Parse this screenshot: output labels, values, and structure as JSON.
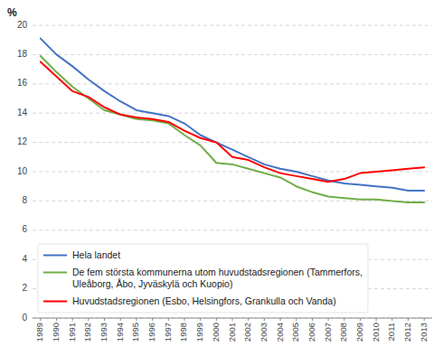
{
  "chart_data": {
    "type": "line",
    "y_label": "%",
    "x": [
      1989,
      1990,
      1991,
      1992,
      1993,
      1994,
      1995,
      1996,
      1997,
      1998,
      1999,
      2000,
      2001,
      2002,
      2003,
      2004,
      2005,
      2006,
      2007,
      2008,
      2009,
      2010,
      2011,
      2012,
      2013
    ],
    "series": [
      {
        "name": "Hela landet",
        "color": "#4472C4",
        "values": [
          19.1,
          18.0,
          17.2,
          16.3,
          15.5,
          14.8,
          14.2,
          14.0,
          13.8,
          13.3,
          12.5,
          12.0,
          11.5,
          11.0,
          10.5,
          10.2,
          10.0,
          9.7,
          9.4,
          9.2,
          9.1,
          9.0,
          8.9,
          8.7,
          8.7
        ]
      },
      {
        "name": "De fem största kommunerna utom huvudstadsregionen (Tammerfors,\nUleåborg, Åbo, Jyväskylä och Kuopio)",
        "color": "#70AD47",
        "values": [
          17.9,
          16.8,
          15.8,
          15.0,
          14.2,
          13.9,
          13.6,
          13.5,
          13.3,
          12.5,
          11.8,
          10.6,
          10.5,
          10.2,
          9.9,
          9.6,
          9.0,
          8.6,
          8.3,
          8.2,
          8.1,
          8.1,
          8.0,
          7.9,
          7.9
        ]
      },
      {
        "name": "Huvudstadsregionen (Esbo, Helsingfors, Grankulla och Vanda)",
        "color": "#FF0000",
        "values": [
          17.5,
          16.5,
          15.5,
          15.1,
          14.4,
          13.9,
          13.7,
          13.6,
          13.4,
          12.8,
          12.3,
          12.0,
          11.0,
          10.8,
          10.3,
          9.9,
          9.7,
          9.5,
          9.3,
          9.5,
          9.9,
          10.0,
          10.1,
          10.2,
          10.3
        ]
      }
    ],
    "xlim": [
      1988.5,
      2013.5
    ],
    "xticks": [
      1989,
      1990,
      1991,
      1992,
      1993,
      1994,
      1995,
      1996,
      1997,
      1998,
      1999,
      2000,
      2001,
      2002,
      2003,
      2004,
      2005,
      2006,
      2007,
      2008,
      2009,
      2010,
      2011,
      2012,
      2013
    ],
    "ylim": [
      0,
      20
    ],
    "yticks": [
      0,
      2,
      4,
      6,
      8,
      10,
      12,
      14,
      16,
      18,
      20
    ],
    "grid": true,
    "legend": "lower left"
  }
}
